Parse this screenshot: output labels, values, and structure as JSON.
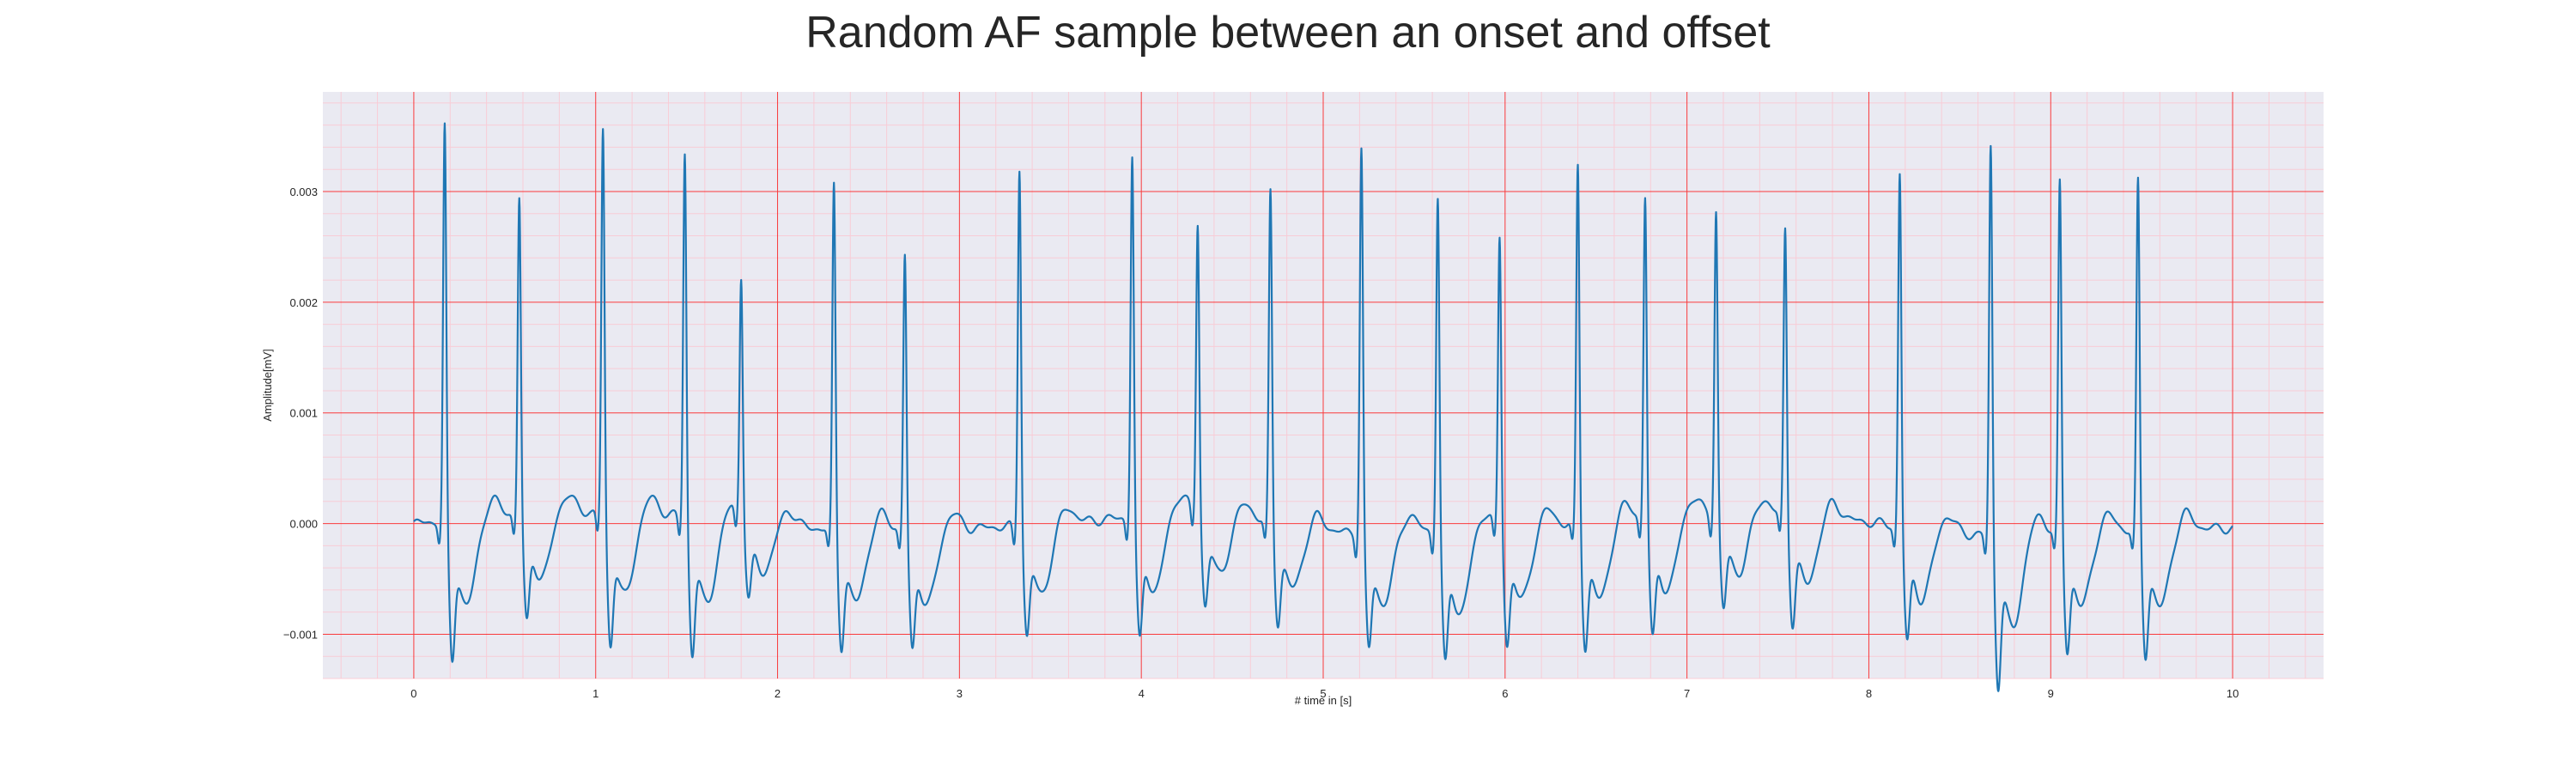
{
  "chart_data": {
    "type": "line",
    "title": "Random AF sample between an onset and offset",
    "xlabel": "# time in [s]",
    "ylabel": "Amplitude[mV]",
    "xlim": [
      -0.5,
      10.5
    ],
    "ylim": [
      -0.0014,
      0.0039
    ],
    "xticks": [
      0,
      1,
      2,
      3,
      4,
      5,
      6,
      7,
      8,
      9,
      10
    ],
    "xtick_labels": [
      "0",
      "1",
      "2",
      "3",
      "4",
      "5",
      "6",
      "7",
      "8",
      "9",
      "10"
    ],
    "yticks": [
      -0.001,
      0.0,
      0.001,
      0.002,
      0.003
    ],
    "ytick_labels": [
      "−0.001",
      "0.000",
      "0.001",
      "0.002",
      "0.003"
    ],
    "grid": true,
    "minor_grid": true,
    "colors": {
      "plot_background": "#eaeaf2",
      "major_grid": "#ff0000",
      "minor_grid": "#ffc0cb",
      "line": "#1f77b4"
    },
    "series": [
      {
        "baseline": [
          0.0,
          0.00012,
          8e-05,
          -4e-05,
          -6e-05,
          0.0,
          0.00012,
          -8e-05,
          -6e-05,
          0.0,
          0.0001,
          4e-05,
          -0.0001,
          -6e-05,
          -4e-05
        ],
        "beats": [
          {
            "t": 0.17,
            "peak": 0.00362,
            "trough": -0.00105
          },
          {
            "t": 0.58,
            "peak": 0.0029,
            "trough": -0.00082
          },
          {
            "t": 1.04,
            "peak": 0.00352,
            "trough": -0.00099
          },
          {
            "t": 1.49,
            "peak": 0.00335,
            "trough": -0.00103
          },
          {
            "t": 1.8,
            "peak": 0.00219,
            "trough": -0.00058
          },
          {
            "t": 2.31,
            "peak": 0.00315,
            "trough": -0.00088
          },
          {
            "t": 2.7,
            "peak": 0.00254,
            "trough": -0.0009
          },
          {
            "t": 3.33,
            "peak": 0.0033,
            "trough": -0.00083
          },
          {
            "t": 3.95,
            "peak": 0.00332,
            "trough": -0.00093
          },
          {
            "t": 4.31,
            "peak": 0.00265,
            "trough": -0.0007
          },
          {
            "t": 4.71,
            "peak": 0.00305,
            "trough": -0.00073
          },
          {
            "t": 5.21,
            "peak": 0.00352,
            "trough": -0.00088
          },
          {
            "t": 5.63,
            "peak": 0.00309,
            "trough": -0.001
          },
          {
            "t": 5.97,
            "peak": 0.00266,
            "trough": -0.00088
          },
          {
            "t": 6.4,
            "peak": 0.0033,
            "trough": -0.00093
          },
          {
            "t": 6.77,
            "peak": 0.00296,
            "trough": -0.0009
          },
          {
            "t": 7.16,
            "peak": 0.00278,
            "trough": -0.00072
          },
          {
            "t": 7.54,
            "peak": 0.00265,
            "trough": -0.0008
          },
          {
            "t": 8.17,
            "peak": 0.00324,
            "trough": -0.00086
          },
          {
            "t": 8.67,
            "peak": 0.00358,
            "trough": -0.00114
          },
          {
            "t": 9.05,
            "peak": 0.00321,
            "trough": -0.0009
          },
          {
            "t": 9.48,
            "peak": 0.0032,
            "trough": -0.00094
          }
        ],
        "x_end": 10.0
      }
    ]
  }
}
